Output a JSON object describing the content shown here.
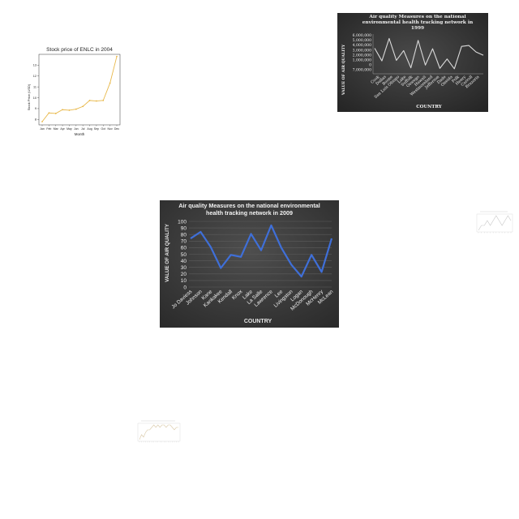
{
  "chart_data": [
    {
      "id": "stock",
      "type": "line",
      "title": "Stock price of ENLC in 2004",
      "xlabel": "Month",
      "ylabel": "Stock Price (USD)",
      "categories": [
        "Jan",
        "Feb",
        "Mar",
        "Apr",
        "May",
        "Jun",
        "Jul",
        "Aug",
        "Sep",
        "Oct",
        "Nov",
        "Dec"
      ],
      "series": [
        {
          "values": [
            7.8,
            8.6,
            8.55,
            8.9,
            8.85,
            8.95,
            9.2,
            9.75,
            9.7,
            9.75,
            11.35,
            13.8
          ]
        }
      ],
      "ylim": [
        7.5,
        14
      ],
      "yticks": [
        8,
        9,
        10,
        11,
        12,
        13
      ],
      "grid": false,
      "colors": {
        "line": "#e8b84a",
        "background": "#ffffff"
      }
    },
    {
      "id": "aq1999",
      "type": "line",
      "title": "Air quality Measures on the national environmental health tracking network in 1999",
      "xlabel": "COUNTRY",
      "ylabel": "VALUE OF AIR QUALITY",
      "categories": [
        "Cook",
        "Dallas",
        "Boone",
        "San Luis Obispo",
        "Lake",
        "Suffolk",
        "Oswego",
        "Hawaii",
        "Westmoreland",
        "Jefferson",
        "Dade",
        "Oneida",
        "Polk",
        "Henry",
        "Carroll",
        "Brazoria"
      ],
      "series": [
        {
          "values": [
            9650000,
            8300000,
            10700000,
            8350000,
            9400000,
            7550000,
            10500000,
            7850000,
            9600000,
            7500000,
            8500000,
            7450000,
            9850000,
            9950000,
            9250000,
            8900000
          ]
        }
      ],
      "ytick_labels": [
        "6,000,000",
        "5,000,000",
        "4,000,000",
        "3,000,000",
        "2,000,000",
        "1,000,000",
        "0",
        "7,000,000"
      ],
      "colors": {
        "line": "#d9d9d9",
        "background": "#3a3a3a"
      }
    },
    {
      "id": "aq2009",
      "type": "line",
      "title": "Air quality Measures on the national environmental health tracking network in 2009",
      "xlabel": "COUNTRY",
      "ylabel": "VALUE OF AIR QUALITY",
      "categories": [
        "Jo Daviess",
        "Johnson",
        "Kane",
        "Kankakee",
        "Kendall",
        "Knox",
        "Lake",
        "La Salle",
        "Lawrence",
        "Lee",
        "Livingston",
        "Logan",
        "McDonough",
        "McHenry",
        "McLean"
      ],
      "series": [
        {
          "values": [
            74,
            84,
            61,
            29,
            49,
            46,
            81,
            56,
            94,
            60,
            34,
            16,
            49,
            23,
            74
          ]
        }
      ],
      "ylim": [
        0,
        100
      ],
      "yticks": [
        0,
        10,
        20,
        30,
        40,
        50,
        60,
        70,
        80,
        90,
        100
      ],
      "grid": true,
      "colors": {
        "line": "#3f6fd8",
        "background": "#404040"
      }
    },
    {
      "id": "mini_right",
      "type": "line",
      "series": [
        {
          "values": [
            2,
            3,
            3,
            4,
            3,
            4,
            5,
            4,
            3,
            4,
            5,
            4
          ]
        }
      ]
    },
    {
      "id": "mini_bottom",
      "type": "line",
      "series": [
        {
          "values": [
            2,
            4,
            3,
            5,
            6,
            6,
            7,
            8,
            7,
            8,
            7,
            8,
            8,
            7,
            8,
            8,
            7,
            6,
            7,
            7
          ]
        }
      ]
    }
  ]
}
